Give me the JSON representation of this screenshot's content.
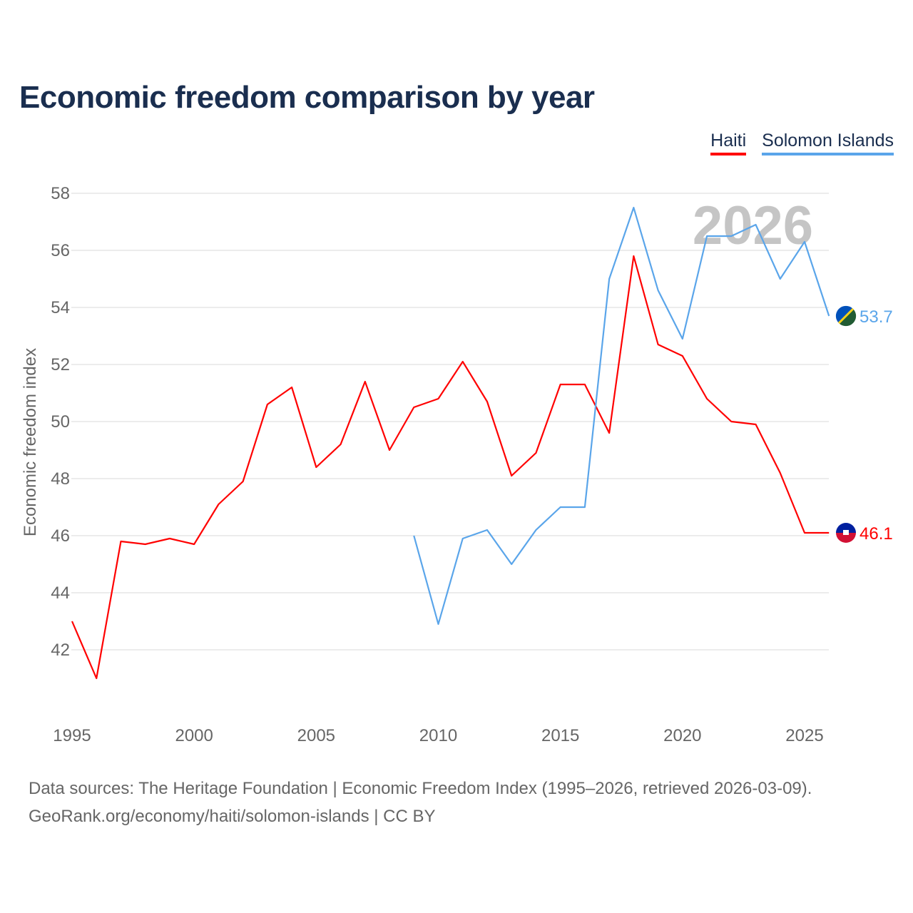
{
  "chart_data": {
    "type": "line",
    "title": "Economic freedom comparison by year",
    "xlabel": "",
    "ylabel": "Economic freedom index",
    "xlim": [
      1995,
      2026
    ],
    "ylim": [
      40,
      58
    ],
    "x_ticks": [
      "1995",
      "2000",
      "2005",
      "2010",
      "2015",
      "2020",
      "2025"
    ],
    "y_ticks": [
      "42",
      "44",
      "46",
      "48",
      "50",
      "52",
      "54",
      "56",
      "58"
    ],
    "grid": true,
    "legend_position": "top-right",
    "watermark_year": "2026",
    "series": [
      {
        "name": "Haiti",
        "color": "#ff0000",
        "end_label": "46.1",
        "x": [
          1995,
          1996,
          1997,
          1998,
          1999,
          2000,
          2001,
          2002,
          2003,
          2004,
          2005,
          2006,
          2007,
          2008,
          2009,
          2010,
          2011,
          2012,
          2013,
          2014,
          2015,
          2016,
          2017,
          2018,
          2019,
          2020,
          2021,
          2022,
          2023,
          2024,
          2025,
          2026
        ],
        "values": [
          43.0,
          41.0,
          45.8,
          45.7,
          45.9,
          45.7,
          47.1,
          47.9,
          50.6,
          51.2,
          48.4,
          49.2,
          51.4,
          49.0,
          50.5,
          50.8,
          52.1,
          50.7,
          48.1,
          48.9,
          51.3,
          51.3,
          49.6,
          55.8,
          52.7,
          52.3,
          50.8,
          50.0,
          49.9,
          48.2,
          46.1,
          46.1
        ]
      },
      {
        "name": "Solomon Islands",
        "color": "#5aa5ea",
        "end_label": "53.7",
        "x": [
          2009,
          2010,
          2011,
          2012,
          2013,
          2014,
          2015,
          2016,
          2017,
          2018,
          2019,
          2020,
          2021,
          2022,
          2023,
          2024,
          2025,
          2026
        ],
        "values": [
          46.0,
          42.9,
          45.9,
          46.2,
          45.0,
          46.2,
          47.0,
          47.0,
          55.0,
          57.5,
          54.6,
          52.9,
          56.5,
          56.5,
          56.9,
          55.0,
          56.3,
          53.7
        ]
      }
    ]
  },
  "footer": {
    "line1": "Data sources: The Heritage Foundation | Economic Freedom Index (1995–2026, retrieved 2026-03-09).",
    "line2": "GeoRank.org/economy/haiti/solomon-islands | CC BY"
  }
}
